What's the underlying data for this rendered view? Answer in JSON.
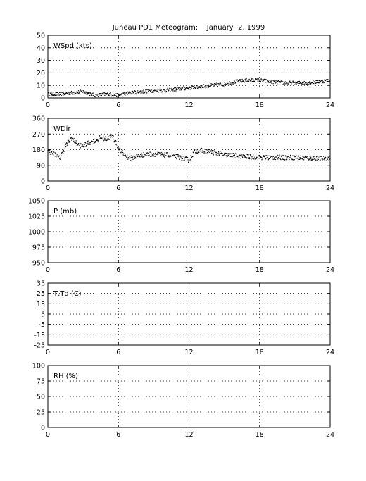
{
  "figure_title": "Juneau PD1 Meteogram:    January  2, 1999",
  "chart_data": [
    {
      "type": "scatter",
      "label": "WSpd (kts)",
      "xlim": [
        0,
        24
      ],
      "ylim": [
        0,
        50
      ],
      "xticks": [
        "0",
        "6",
        "12",
        "18",
        "24"
      ],
      "yticks": [
        "0",
        "10",
        "20",
        "30",
        "40",
        "50"
      ],
      "grid": true,
      "trend": [
        [
          0,
          3
        ],
        [
          1,
          3
        ],
        [
          2,
          4
        ],
        [
          3,
          5
        ],
        [
          4,
          2
        ],
        [
          5,
          3
        ],
        [
          6,
          2
        ],
        [
          7,
          4
        ],
        [
          8,
          5
        ],
        [
          9,
          6
        ],
        [
          10,
          6
        ],
        [
          11,
          7
        ],
        [
          12,
          8
        ],
        [
          13,
          9
        ],
        [
          14,
          10
        ],
        [
          15,
          11
        ],
        [
          16,
          13
        ],
        [
          17,
          14
        ],
        [
          18,
          14
        ],
        [
          19,
          13
        ],
        [
          20,
          12
        ],
        [
          21,
          12
        ],
        [
          22,
          12
        ],
        [
          23,
          13
        ],
        [
          24,
          14
        ]
      ],
      "scatter": 1.5
    },
    {
      "type": "scatter",
      "label": "WDir",
      "xlim": [
        0,
        24
      ],
      "ylim": [
        0,
        360
      ],
      "xticks": [
        "0",
        "6",
        "12",
        "18",
        "24"
      ],
      "yticks": [
        "0",
        "90",
        "180",
        "270",
        "360"
      ],
      "grid": true,
      "trend": [
        [
          0,
          170
        ],
        [
          0.5,
          160
        ],
        [
          1,
          130
        ],
        [
          1.5,
          200
        ],
        [
          2,
          250
        ],
        [
          2.5,
          210
        ],
        [
          3,
          200
        ],
        [
          3.5,
          220
        ],
        [
          4,
          230
        ],
        [
          4.5,
          250
        ],
        [
          5,
          240
        ],
        [
          5.5,
          260
        ],
        [
          6,
          190
        ],
        [
          6.5,
          150
        ],
        [
          7,
          130
        ],
        [
          7.5,
          140
        ],
        [
          8,
          150
        ],
        [
          9,
          155
        ],
        [
          10,
          150
        ],
        [
          11,
          140
        ],
        [
          12,
          120
        ],
        [
          12.5,
          170
        ],
        [
          13,
          175
        ],
        [
          14,
          165
        ],
        [
          15,
          150
        ],
        [
          16,
          145
        ],
        [
          17,
          140
        ],
        [
          18,
          135
        ],
        [
          19,
          135
        ],
        [
          20,
          135
        ],
        [
          21,
          135
        ],
        [
          22,
          132
        ],
        [
          23,
          130
        ],
        [
          24,
          130
        ]
      ],
      "scatter": 14
    },
    {
      "type": "scatter",
      "label": "P (mb)",
      "xlim": [
        0,
        24
      ],
      "ylim": [
        950,
        1050
      ],
      "xticks": [
        "0",
        "6",
        "12",
        "18",
        "24"
      ],
      "yticks": [
        "950",
        "975",
        "1000",
        "1025",
        "1050"
      ],
      "grid": true
    },
    {
      "type": "scatter",
      "label": "T,Td (C)",
      "xlim": [
        0,
        24
      ],
      "ylim": [
        -25,
        35
      ],
      "xticks": [
        "0",
        "6",
        "12",
        "18",
        "24"
      ],
      "yticks": [
        "-25",
        "-15",
        "-5",
        "5",
        "15",
        "25",
        "35"
      ],
      "grid": true
    },
    {
      "type": "scatter",
      "label": "RH (%)",
      "xlim": [
        0,
        24
      ],
      "ylim": [
        0,
        100
      ],
      "xticks": [
        "0",
        "6",
        "12",
        "18",
        "24"
      ],
      "yticks": [
        "0",
        "25",
        "50",
        "75",
        "100"
      ],
      "grid": true
    }
  ]
}
